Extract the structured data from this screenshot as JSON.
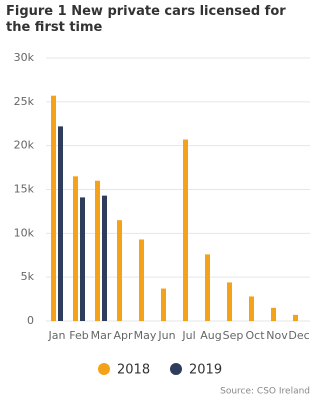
{
  "chart_data": {
    "type": "bar",
    "title": "Figure 1 New private cars licensed for the first time",
    "categories": [
      "Jan",
      "Feb",
      "Mar",
      "Apr",
      "May",
      "Jun",
      "Jul",
      "Aug",
      "Sep",
      "Oct",
      "Nov",
      "Dec"
    ],
    "series": [
      {
        "name": "2018",
        "color": "#f5a21b",
        "values": [
          25700,
          16500,
          16000,
          11500,
          9300,
          3700,
          20700,
          7600,
          4400,
          2800,
          1500,
          700
        ]
      },
      {
        "name": "2019",
        "color": "#2e3d5c",
        "values": [
          22200,
          14100,
          14300,
          null,
          null,
          null,
          null,
          null,
          null,
          null,
          null,
          null
        ]
      }
    ],
    "ylim": [
      0,
      30000
    ],
    "yticks": [
      0,
      {
        "value": 5000,
        "label": "5k"
      },
      {
        "value": 10000,
        "label": "10k"
      },
      {
        "value": 15000,
        "label": "15k"
      },
      {
        "value": 20000,
        "label": "20k"
      },
      {
        "value": 25000,
        "label": "25k"
      },
      {
        "value": 30000,
        "label": "30k"
      }
    ],
    "grid": true,
    "source": "Source: CSO Ireland"
  }
}
